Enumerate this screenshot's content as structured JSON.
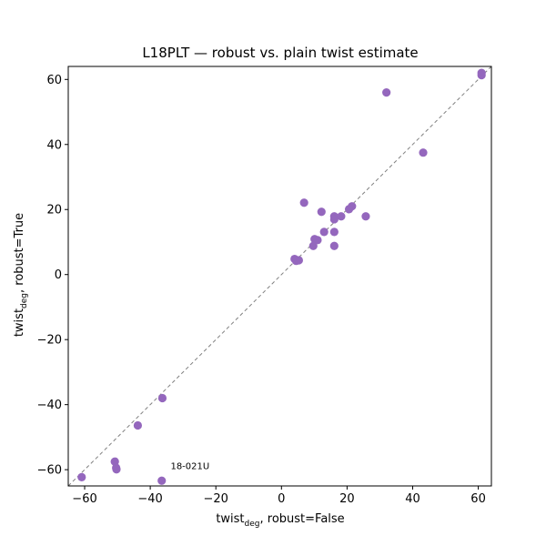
{
  "chart_data": {
    "type": "scatter",
    "title": "L18PLT — robust vs. plain twist estimate",
    "xlabel": {
      "main": "twist",
      "sub": "deg",
      "rest": ", robust=False"
    },
    "ylabel": {
      "main": "twist",
      "sub": "deg",
      "rest": ", robust=True"
    },
    "xlim": [
      -65,
      64
    ],
    "ylim": [
      -65,
      64
    ],
    "xticks": [
      -60,
      -40,
      -20,
      0,
      20,
      40,
      60
    ],
    "yticks": [
      -60,
      -40,
      -20,
      0,
      20,
      40,
      60
    ],
    "grid": false,
    "marker_color": "#9467bd",
    "reference_line": {
      "style": "dashed",
      "color": "#808080",
      "from": [
        -65,
        -65
      ],
      "to": [
        64,
        64
      ]
    },
    "points": [
      {
        "x": 61,
        "y": 62
      },
      {
        "x": 61,
        "y": 61.3
      },
      {
        "x": 32,
        "y": 56
      },
      {
        "x": 43.2,
        "y": 37.5
      },
      {
        "x": 6.9,
        "y": 22.1
      },
      {
        "x": 12.2,
        "y": 19.3
      },
      {
        "x": 21.5,
        "y": 21
      },
      {
        "x": 20.6,
        "y": 20.1
      },
      {
        "x": 16.1,
        "y": 17.9
      },
      {
        "x": 18.2,
        "y": 17.9
      },
      {
        "x": 25.7,
        "y": 17.9
      },
      {
        "x": 16.1,
        "y": 17
      },
      {
        "x": 13,
        "y": 13.1
      },
      {
        "x": 16.1,
        "y": 13.1
      },
      {
        "x": 10.1,
        "y": 10.9
      },
      {
        "x": 11,
        "y": 10.6
      },
      {
        "x": 9.7,
        "y": 8.8
      },
      {
        "x": 16.1,
        "y": 8.8
      },
      {
        "x": 4,
        "y": 4.8
      },
      {
        "x": 5.3,
        "y": 4.4
      },
      {
        "x": 4.5,
        "y": 4.2
      },
      {
        "x": -36.3,
        "y": -38
      },
      {
        "x": -43.8,
        "y": -46.4
      },
      {
        "x": -50.8,
        "y": -57.5
      },
      {
        "x": -50.4,
        "y": -59.4
      },
      {
        "x": -50.3,
        "y": -59.9
      },
      {
        "x": -60.9,
        "y": -62.3
      },
      {
        "x": -36.5,
        "y": -63.4
      }
    ],
    "annotations": [
      {
        "text": "18-021U",
        "x": -33.8,
        "y": -59.8
      }
    ]
  }
}
